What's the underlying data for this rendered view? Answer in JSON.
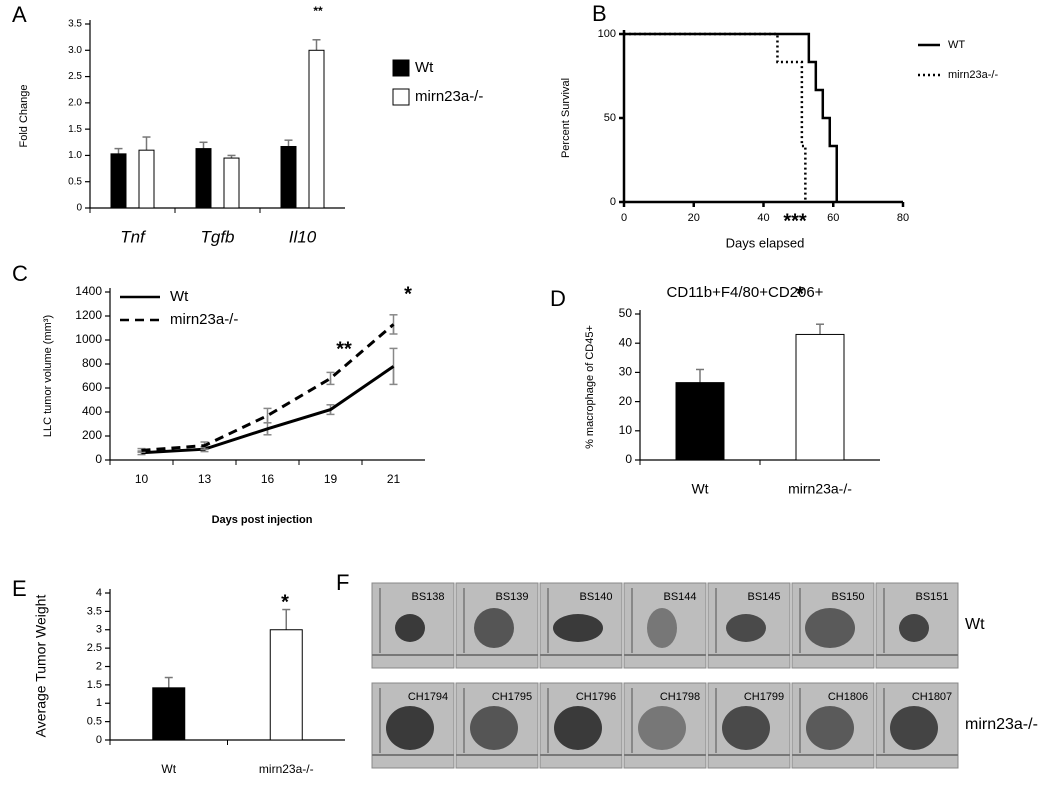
{
  "chart_data": [
    {
      "panel": "A",
      "type": "bar",
      "ylabel": "Fold Change",
      "categories": [
        "Tnf",
        "Tgfb",
        "Il10"
      ],
      "series": [
        {
          "name": "Wt",
          "color": "#000000",
          "values": [
            1.03,
            1.13,
            1.17
          ],
          "errors": [
            0.1,
            0.12,
            0.12
          ]
        },
        {
          "name": "mirn23a-/-",
          "color": "#ffffff",
          "values": [
            1.1,
            0.95,
            3.0
          ],
          "errors": [
            0.25,
            0.05,
            0.2
          ]
        }
      ],
      "ylim": [
        0,
        3.5
      ],
      "yticks": [
        0,
        0.5,
        {
          "value": 1,
          "label": "1.0"
        },
        1.5,
        {
          "value": 2,
          "label": "2.0"
        },
        2.5,
        {
          "value": 3,
          "label": "3.0"
        },
        3.5
      ],
      "annotations": [
        "**"
      ]
    },
    {
      "panel": "B",
      "type": "step",
      "xlabel": "Days elapsed",
      "ylabel": "Percent Survival",
      "series": [
        {
          "name": "WT",
          "color": "#000000",
          "line_style": "solid",
          "x": [
            0,
            53,
            55,
            57,
            59,
            61
          ],
          "values": [
            100,
            83.3,
            66.7,
            50,
            33.3,
            0
          ]
        },
        {
          "name": "mirn23a-/-",
          "color": "#000000",
          "line_style": "dotted",
          "x": [
            0,
            44,
            51,
            52
          ],
          "values": [
            100,
            83.3,
            33.3,
            0
          ]
        }
      ],
      "xlim": [
        0,
        80
      ],
      "xticks": [
        0,
        20,
        40,
        60,
        80
      ],
      "ylim": [
        0,
        100
      ],
      "yticks": [
        0,
        50,
        100
      ],
      "annotations": [
        "***"
      ]
    },
    {
      "panel": "C",
      "type": "line",
      "xlabel": "Days post injection",
      "ylabel": "LLC tumor volume (mm³)",
      "categories": [
        "10",
        "13",
        "16",
        "19",
        "21"
      ],
      "series": [
        {
          "name": "Wt",
          "color": "#000000",
          "line_style": "solid",
          "values": [
            60,
            90,
            260,
            420,
            780
          ],
          "errors": [
            15,
            20,
            50,
            40,
            150
          ]
        },
        {
          "name": "mirn23a-/-",
          "color": "#000000",
          "line_style": "dashed",
          "values": [
            80,
            120,
            370,
            680,
            1130
          ],
          "errors": [
            15,
            30,
            60,
            50,
            80
          ]
        }
      ],
      "ylim": [
        0,
        1400
      ],
      "yticks": [
        0,
        200,
        400,
        600,
        800,
        1000,
        1200,
        1400
      ],
      "annotations": [
        "**",
        "*"
      ]
    },
    {
      "panel": "D",
      "type": "bar",
      "title": "CD11b+F4/80+CD206+",
      "ylabel": "% macrophage of CD45+",
      "categories": [
        "Wt",
        "mirn23a-/-"
      ],
      "values": [
        26.5,
        43
      ],
      "errors": [
        4.5,
        3.5
      ],
      "colors": [
        "#000000",
        "#ffffff"
      ],
      "ylim": [
        0,
        50
      ],
      "yticks": [
        0,
        10,
        20,
        30,
        40,
        50
      ],
      "annotations": [
        "*"
      ]
    },
    {
      "panel": "E",
      "type": "bar",
      "ylabel": "Average Tumor Weight",
      "categories": [
        "Wt",
        "mirn23a-/-"
      ],
      "values": [
        1.42,
        3.0
      ],
      "errors": [
        0.28,
        0.55
      ],
      "colors": [
        "#000000",
        "#ffffff"
      ],
      "ylim": [
        0,
        4
      ],
      "yticks": [
        0,
        0.5,
        1,
        1.5,
        2,
        2.5,
        3,
        3.5,
        4
      ],
      "annotations": [
        "*"
      ]
    }
  ],
  "figure_f": {
    "panel": "F",
    "rows": [
      {
        "label": "Wt",
        "samples": [
          "BS138",
          "BS139",
          "BS140",
          "BS144",
          "BS145",
          "BS150",
          "BS151"
        ]
      },
      {
        "label": "mirn23a-/-",
        "samples": [
          "CH1794",
          "CH1795",
          "CH1796",
          "CH1798",
          "CH1799",
          "CH1806",
          "CH1807"
        ]
      }
    ]
  }
}
